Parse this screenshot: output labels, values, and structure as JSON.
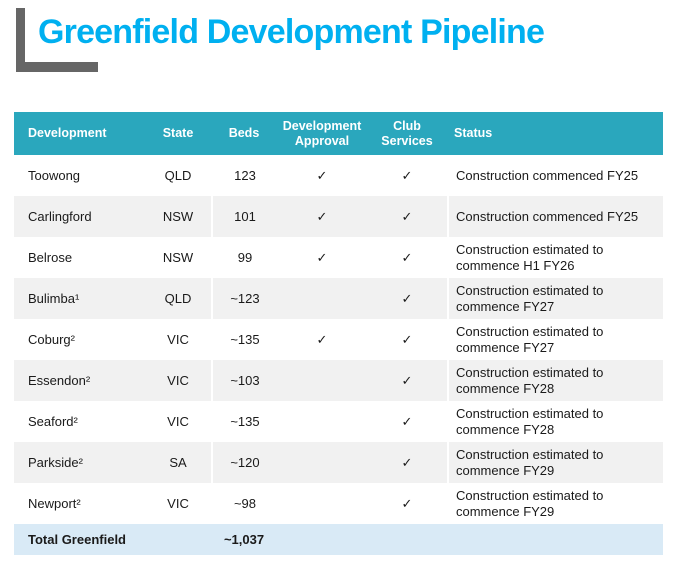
{
  "title": "Greenfield Development Pipeline",
  "colors": {
    "title_cyan": "#00B0F0",
    "header_teal": "#2AA7BD",
    "row_alt_gray": "#F1F1F1",
    "total_row_blue": "#D9EAF6",
    "bracket_gray": "#666666"
  },
  "table": {
    "columns": {
      "development": "Development",
      "state": "State",
      "beds": "Beds",
      "approval": "Development Approval",
      "club": "Club Services",
      "status": "Status"
    },
    "rows": [
      {
        "development": "Toowong",
        "state": "QLD",
        "beds": "123",
        "approval": "✓",
        "club": "✓",
        "status": "Construction commenced FY25"
      },
      {
        "development": "Carlingford",
        "state": "NSW",
        "beds": "101",
        "approval": "✓",
        "club": "✓",
        "status": "Construction commenced FY25"
      },
      {
        "development": "Belrose",
        "state": "NSW",
        "beds": "99",
        "approval": "✓",
        "club": "✓",
        "status": "Construction estimated to commence H1 FY26"
      },
      {
        "development": "Bulimba¹",
        "state": "QLD",
        "beds": "~123",
        "approval": "",
        "club": "✓",
        "status": "Construction estimated to commence FY27"
      },
      {
        "development": "Coburg²",
        "state": "VIC",
        "beds": "~135",
        "approval": "✓",
        "club": "✓",
        "status": "Construction estimated to commence FY27"
      },
      {
        "development": "Essendon²",
        "state": "VIC",
        "beds": "~103",
        "approval": "",
        "club": "✓",
        "status": "Construction estimated to commence FY28"
      },
      {
        "development": "Seaford²",
        "state": "VIC",
        "beds": "~135",
        "approval": "",
        "club": "✓",
        "status": "Construction estimated to commence FY28"
      },
      {
        "development": "Parkside²",
        "state": "SA",
        "beds": "~120",
        "approval": "",
        "club": "✓",
        "status": "Construction estimated to commence FY29"
      },
      {
        "development": "Newport²",
        "state": "VIC",
        "beds": "~98",
        "approval": "",
        "club": "✓",
        "status": "Construction estimated to commence FY29"
      }
    ],
    "total": {
      "label": "Total Greenfield",
      "beds": "~1,037"
    }
  }
}
